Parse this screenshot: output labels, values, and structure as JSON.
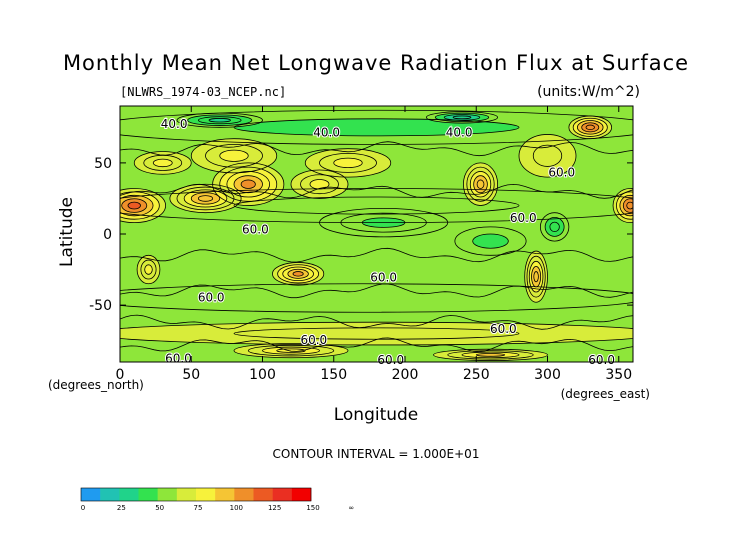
{
  "chart_data": {
    "type": "heatmap",
    "title": "Monthly Mean Net Longwave Radiation Flux at Surface",
    "file_label": "[NLWRS_1974-03_NCEP.nc]",
    "units_label": "(units:W/m^2)",
    "xlabel": "Longitude",
    "ylabel": "Latitude",
    "x_unit_label": "(degrees_east)",
    "y_unit_label": "(degrees_north)",
    "xlim": [
      0,
      360
    ],
    "ylim": [
      -90,
      90
    ],
    "x_ticks": [
      "0",
      "50",
      "100",
      "150",
      "200",
      "250",
      "300",
      "350"
    ],
    "x_tick_values": [
      0,
      50,
      100,
      150,
      200,
      250,
      300,
      350
    ],
    "y_ticks": [
      "50",
      "0",
      "-50"
    ],
    "y_tick_values": [
      50,
      0,
      -50
    ],
    "contour_interval_label": "CONTOUR INTERVAL = 1.000E+01",
    "contour_labels": [
      {
        "text": "40.0",
        "lon": 38,
        "lat": 78
      },
      {
        "text": "40.0",
        "lon": 145,
        "lat": 72
      },
      {
        "text": "40.0",
        "lon": 238,
        "lat": 72
      },
      {
        "text": "60.0",
        "lon": 310,
        "lat": 44
      },
      {
        "text": "60.0",
        "lon": 283,
        "lat": 12
      },
      {
        "text": "60.0",
        "lon": 95,
        "lat": 4
      },
      {
        "text": "60.0",
        "lon": 185,
        "lat": -30
      },
      {
        "text": "60.0",
        "lon": 64,
        "lat": -44
      },
      {
        "text": "60.0",
        "lon": 269,
        "lat": -66
      },
      {
        "text": "60.0",
        "lon": 136,
        "lat": -74
      },
      {
        "text": "60.0",
        "lon": 190,
        "lat": -88
      },
      {
        "text": "60.0",
        "lon": 41,
        "lat": -87
      },
      {
        "text": "60.0",
        "lon": 338,
        "lat": -88
      }
    ],
    "colorbar": {
      "colors": [
        "#1f9bf0",
        "#21c2b3",
        "#20d38a",
        "#33e24f",
        "#8ee63a",
        "#d8ec3a",
        "#f7f23b",
        "#f5c534",
        "#ef8f2a",
        "#ec5a23",
        "#ea2f22",
        "#f20000"
      ],
      "labels": [
        "0",
        "25",
        "50",
        "75",
        "100",
        "125",
        "150",
        "∞"
      ]
    },
    "regions": [
      {
        "lon": 180,
        "lat": 0,
        "rlon": 200,
        "rlat": 95,
        "value": 60
      },
      {
        "lon": 180,
        "lat": 75,
        "rlon": 200,
        "rlat": 12,
        "value": 48
      },
      {
        "lon": 180,
        "lat": 20,
        "rlon": 200,
        "rlat": 12,
        "value": 52
      },
      {
        "lon": 185,
        "lat": 8,
        "rlon": 45,
        "rlat": 10,
        "value": 45
      },
      {
        "lon": 170,
        "lat": -45,
        "rlon": 200,
        "rlat": 10,
        "value": 58
      },
      {
        "lon": 10,
        "lat": 20,
        "rlon": 22,
        "rlat": 12,
        "value": 118
      },
      {
        "lon": 358,
        "lat": 20,
        "rlon": 12,
        "rlat": 12,
        "value": 112
      },
      {
        "lon": 60,
        "lat": 25,
        "rlon": 25,
        "rlat": 10,
        "value": 95
      },
      {
        "lon": 90,
        "lat": 35,
        "rlon": 25,
        "rlat": 15,
        "value": 100
      },
      {
        "lon": 140,
        "lat": 35,
        "rlon": 20,
        "rlat": 10,
        "value": 80
      },
      {
        "lon": 80,
        "lat": 55,
        "rlon": 30,
        "rlat": 12,
        "value": 75
      },
      {
        "lon": 160,
        "lat": 50,
        "rlon": 30,
        "rlat": 10,
        "value": 82
      },
      {
        "lon": 30,
        "lat": 50,
        "rlon": 20,
        "rlat": 8,
        "value": 78
      },
      {
        "lon": 253,
        "lat": 35,
        "rlon": 12,
        "rlat": 15,
        "value": 95
      },
      {
        "lon": 300,
        "lat": 55,
        "rlon": 20,
        "rlat": 15,
        "value": 72
      },
      {
        "lon": 330,
        "lat": 75,
        "rlon": 15,
        "rlat": 8,
        "value": 110
      },
      {
        "lon": 292,
        "lat": -30,
        "rlon": 8,
        "rlat": 18,
        "value": 95
      },
      {
        "lon": 125,
        "lat": -28,
        "rlon": 18,
        "rlat": 8,
        "value": 100
      },
      {
        "lon": 20,
        "lat": -25,
        "rlon": 8,
        "rlat": 10,
        "value": 78
      },
      {
        "lon": 180,
        "lat": -70,
        "rlon": 200,
        "rlat": 8,
        "value": 70
      },
      {
        "lon": 120,
        "lat": -82,
        "rlon": 40,
        "rlat": 5,
        "value": 85
      },
      {
        "lon": 260,
        "lat": -85,
        "rlon": 40,
        "rlat": 4,
        "value": 88
      },
      {
        "lon": 260,
        "lat": -5,
        "rlon": 25,
        "rlat": 10,
        "value": 48
      },
      {
        "lon": 305,
        "lat": 5,
        "rlon": 10,
        "rlat": 10,
        "value": 40
      },
      {
        "lon": 70,
        "lat": 80,
        "rlon": 30,
        "rlat": 5,
        "value": 30
      },
      {
        "lon": 240,
        "lat": 82,
        "rlon": 25,
        "rlat": 4,
        "value": 28
      }
    ]
  }
}
